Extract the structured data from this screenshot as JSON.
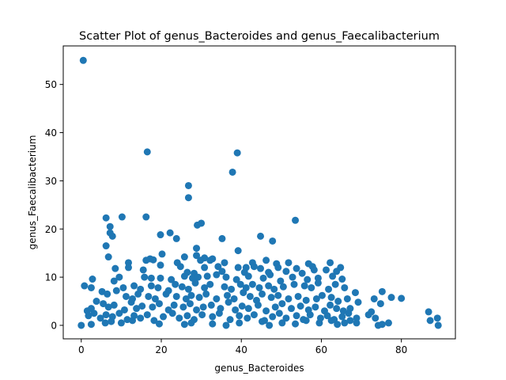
{
  "chart_data": {
    "type": "scatter",
    "title": "Scatter Plot of genus_Bacteroides and genus_Faecalibacterium",
    "xlabel": "genus_Bacteroides",
    "ylabel": "genus_Faecalibacterium",
    "xlim": [
      -4.5,
      93.5
    ],
    "ylim": [
      -2.8,
      58.0
    ],
    "xticks": [
      0,
      20,
      40,
      60,
      80
    ],
    "yticks": [
      0,
      10,
      20,
      30,
      40,
      50
    ],
    "grid": false,
    "legend": "none",
    "marker_color": "#1f77b4",
    "points": [
      [
        0.5,
        55.0
      ],
      [
        16.5,
        36.0
      ],
      [
        39.0,
        35.8
      ],
      [
        37.8,
        31.8
      ],
      [
        26.8,
        29.0
      ],
      [
        26.8,
        26.5
      ],
      [
        30.0,
        21.2
      ],
      [
        29.0,
        20.8
      ],
      [
        53.5,
        21.8
      ],
      [
        6.2,
        22.3
      ],
      [
        10.2,
        22.5
      ],
      [
        16.2,
        22.5
      ],
      [
        7.2,
        20.5
      ],
      [
        7.2,
        19.2
      ],
      [
        7.8,
        18.5
      ],
      [
        19.8,
        18.8
      ],
      [
        22.2,
        19.2
      ],
      [
        23.8,
        18.0
      ],
      [
        35.2,
        18.0
      ],
      [
        44.8,
        18.5
      ],
      [
        47.8,
        17.5
      ],
      [
        6.2,
        16.5
      ],
      [
        28.8,
        16.0
      ],
      [
        39.2,
        15.5
      ],
      [
        6.8,
        14.2
      ],
      [
        17.2,
        13.8
      ],
      [
        20.2,
        14.8
      ],
      [
        25.8,
        14.2
      ],
      [
        28.8,
        14.5
      ],
      [
        30.8,
        14.0
      ],
      [
        32.8,
        13.8
      ],
      [
        11.8,
        13.0
      ],
      [
        16.2,
        13.5
      ],
      [
        18.0,
        13.6
      ],
      [
        24.0,
        13.0
      ],
      [
        29.8,
        13.5
      ],
      [
        32.2,
        13.5
      ],
      [
        35.8,
        13.0
      ],
      [
        42.8,
        13.0
      ],
      [
        46.2,
        13.5
      ],
      [
        48.8,
        12.8
      ],
      [
        51.8,
        13.0
      ],
      [
        56.8,
        12.8
      ],
      [
        62.2,
        13.0
      ],
      [
        11.8,
        12.0
      ],
      [
        19.8,
        12.5
      ],
      [
        24.8,
        12.2
      ],
      [
        30.8,
        12.0
      ],
      [
        34.2,
        12.2
      ],
      [
        39.2,
        12.0
      ],
      [
        41.2,
        12.0
      ],
      [
        43.2,
        12.2
      ],
      [
        44.8,
        11.8
      ],
      [
        49.2,
        12.0
      ],
      [
        53.8,
        11.8
      ],
      [
        57.8,
        12.2
      ],
      [
        61.2,
        11.5
      ],
      [
        64.8,
        12.0
      ],
      [
        8.5,
        11.8
      ],
      [
        15.5,
        11.5
      ],
      [
        26.5,
        11.0
      ],
      [
        28.2,
        10.8
      ],
      [
        35.2,
        11.2
      ],
      [
        40.8,
        11.0
      ],
      [
        46.8,
        11.0
      ],
      [
        51.2,
        11.2
      ],
      [
        55.2,
        10.8
      ],
      [
        58.2,
        11.5
      ],
      [
        63.8,
        11.2
      ],
      [
        2.8,
        9.6
      ],
      [
        8.2,
        9.2
      ],
      [
        9.5,
        10.0
      ],
      [
        15.8,
        10.0
      ],
      [
        17.5,
        9.8
      ],
      [
        19.8,
        9.8
      ],
      [
        22.5,
        9.5
      ],
      [
        25.8,
        10.2
      ],
      [
        27.8,
        9.8
      ],
      [
        29.2,
        10.0
      ],
      [
        31.5,
        10.2
      ],
      [
        33.8,
        10.5
      ],
      [
        36.2,
        10.0
      ],
      [
        38.8,
        9.5
      ],
      [
        41.8,
        10.2
      ],
      [
        45.5,
        9.8
      ],
      [
        47.2,
        10.5
      ],
      [
        49.8,
        9.2
      ],
      [
        52.8,
        10.0
      ],
      [
        56.5,
        9.5
      ],
      [
        59.2,
        9.8
      ],
      [
        62.8,
        10.2
      ],
      [
        65.2,
        9.6
      ],
      [
        0.8,
        8.2
      ],
      [
        2.5,
        7.8
      ],
      [
        8.8,
        7.2
      ],
      [
        10.5,
        7.8
      ],
      [
        13.2,
        8.2
      ],
      [
        14.8,
        7.5
      ],
      [
        17.5,
        8.2
      ],
      [
        19.2,
        7.8
      ],
      [
        21.8,
        7.2
      ],
      [
        23.5,
        8.5
      ],
      [
        25.2,
        8.0
      ],
      [
        26.8,
        7.5
      ],
      [
        28.5,
        8.8
      ],
      [
        30.8,
        7.8
      ],
      [
        32.2,
        8.5
      ],
      [
        35.8,
        8.0
      ],
      [
        37.5,
        7.5
      ],
      [
        39.8,
        8.5
      ],
      [
        41.2,
        7.8
      ],
      [
        42.8,
        8.5
      ],
      [
        44.5,
        7.8
      ],
      [
        46.8,
        8.2
      ],
      [
        48.2,
        7.5
      ],
      [
        50.5,
        8.0
      ],
      [
        53.2,
        8.5
      ],
      [
        55.8,
        8.2
      ],
      [
        57.5,
        7.8
      ],
      [
        59.2,
        8.8
      ],
      [
        61.8,
        7.5
      ],
      [
        63.5,
        8.5
      ],
      [
        65.8,
        7.8
      ],
      [
        68.5,
        6.8
      ],
      [
        5.2,
        7.0
      ],
      [
        6.5,
        6.5
      ],
      [
        11.2,
        6.0
      ],
      [
        12.8,
        5.5
      ],
      [
        14.2,
        6.5
      ],
      [
        16.8,
        6.0
      ],
      [
        18.5,
        5.5
      ],
      [
        21.2,
        6.5
      ],
      [
        23.8,
        6.0
      ],
      [
        26.2,
        5.5
      ],
      [
        27.5,
        6.2
      ],
      [
        29.5,
        5.8
      ],
      [
        31.2,
        6.5
      ],
      [
        33.8,
        5.5
      ],
      [
        36.5,
        6.2
      ],
      [
        38.2,
        5.5
      ],
      [
        40.5,
        6.8
      ],
      [
        42.2,
        6.0
      ],
      [
        43.8,
        5.2
      ],
      [
        45.2,
        6.5
      ],
      [
        47.5,
        5.8
      ],
      [
        49.2,
        6.2
      ],
      [
        51.8,
        5.5
      ],
      [
        54.2,
        6.0
      ],
      [
        56.2,
        5.2
      ],
      [
        58.8,
        5.5
      ],
      [
        60.2,
        6.2
      ],
      [
        62.5,
        5.8
      ],
      [
        64.2,
        5.0
      ],
      [
        66.5,
        5.5
      ],
      [
        69.2,
        4.8
      ],
      [
        73.2,
        5.5
      ],
      [
        75.2,
        7.0
      ],
      [
        77.5,
        5.8
      ],
      [
        80.0,
        5.6
      ],
      [
        1.5,
        3.0
      ],
      [
        2.5,
        3.5
      ],
      [
        3.8,
        5.0
      ],
      [
        5.5,
        4.5
      ],
      [
        6.8,
        3.8
      ],
      [
        8.2,
        4.2
      ],
      [
        10.8,
        3.2
      ],
      [
        12.5,
        4.8
      ],
      [
        13.8,
        3.5
      ],
      [
        15.2,
        4.0
      ],
      [
        17.8,
        3.8
      ],
      [
        19.5,
        4.5
      ],
      [
        21.8,
        3.2
      ],
      [
        23.2,
        4.2
      ],
      [
        25.5,
        3.8
      ],
      [
        27.2,
        4.5
      ],
      [
        28.8,
        3.2
      ],
      [
        30.5,
        3.8
      ],
      [
        32.5,
        4.2
      ],
      [
        34.8,
        3.5
      ],
      [
        36.8,
        4.8
      ],
      [
        38.5,
        3.2
      ],
      [
        40.2,
        4.0
      ],
      [
        41.8,
        3.5
      ],
      [
        44.2,
        4.2
      ],
      [
        46.2,
        3.0
      ],
      [
        48.5,
        3.8
      ],
      [
        50.2,
        4.5
      ],
      [
        52.5,
        3.5
      ],
      [
        54.8,
        4.0
      ],
      [
        56.8,
        3.2
      ],
      [
        58.5,
        3.8
      ],
      [
        60.8,
        3.0
      ],
      [
        62.2,
        4.2
      ],
      [
        63.8,
        3.5
      ],
      [
        65.5,
        3.0
      ],
      [
        67.2,
        3.5
      ],
      [
        72.5,
        2.8
      ],
      [
        74.8,
        4.5
      ],
      [
        1.8,
        2.0
      ],
      [
        3.2,
        2.5
      ],
      [
        4.8,
        1.5
      ],
      [
        6.2,
        2.2
      ],
      [
        7.8,
        1.8
      ],
      [
        9.5,
        2.5
      ],
      [
        11.5,
        1.2
      ],
      [
        13.2,
        2.0
      ],
      [
        14.8,
        1.5
      ],
      [
        16.5,
        2.2
      ],
      [
        18.2,
        1.0
      ],
      [
        20.5,
        1.8
      ],
      [
        22.8,
        2.5
      ],
      [
        24.5,
        1.5
      ],
      [
        26.5,
        2.0
      ],
      [
        28.2,
        1.2
      ],
      [
        30.2,
        2.2
      ],
      [
        32.8,
        1.8
      ],
      [
        34.5,
        2.5
      ],
      [
        37.2,
        1.2
      ],
      [
        39.5,
        2.0
      ],
      [
        41.5,
        1.5
      ],
      [
        43.2,
        2.2
      ],
      [
        45.8,
        1.0
      ],
      [
        47.8,
        1.8
      ],
      [
        49.5,
        2.5
      ],
      [
        51.2,
        1.5
      ],
      [
        53.8,
        2.0
      ],
      [
        55.5,
        1.2
      ],
      [
        57.2,
        2.2
      ],
      [
        59.8,
        1.5
      ],
      [
        61.5,
        2.0
      ],
      [
        63.2,
        1.2
      ],
      [
        65.2,
        1.8
      ],
      [
        66.8,
        2.5
      ],
      [
        68.8,
        1.5
      ],
      [
        71.8,
        2.2
      ],
      [
        73.5,
        1.5
      ],
      [
        86.8,
        2.8
      ],
      [
        89.0,
        1.5
      ],
      [
        0.0,
        0.0
      ],
      [
        2.5,
        0.2
      ],
      [
        6.0,
        0.5
      ],
      [
        7.5,
        0.8
      ],
      [
        10.0,
        0.5
      ],
      [
        12.8,
        1.0
      ],
      [
        19.5,
        0.3
      ],
      [
        25.8,
        0.2
      ],
      [
        27.5,
        0.5
      ],
      [
        32.8,
        0.3
      ],
      [
        36.2,
        0.0
      ],
      [
        39.5,
        0.5
      ],
      [
        45.2,
        0.8
      ],
      [
        47.0,
        0.0
      ],
      [
        50.2,
        0.5
      ],
      [
        53.5,
        0.3
      ],
      [
        56.2,
        1.0
      ],
      [
        59.5,
        0.5
      ],
      [
        62.5,
        1.0
      ],
      [
        64.0,
        0.2
      ],
      [
        65.8,
        0.5
      ],
      [
        67.2,
        1.0
      ],
      [
        68.8,
        0.5
      ],
      [
        74.2,
        0.0
      ],
      [
        75.2,
        0.2
      ],
      [
        76.8,
        0.5
      ],
      [
        87.2,
        1.0
      ],
      [
        89.2,
        0.0
      ]
    ]
  }
}
